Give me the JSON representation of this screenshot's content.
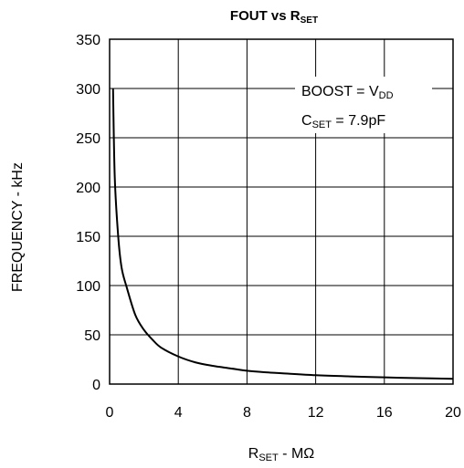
{
  "chart_data": {
    "type": "line",
    "title": {
      "main": "FOUT vs R",
      "sub": "SET"
    },
    "xlabel": {
      "main": "R",
      "sub": "SET",
      "rest": " - MΩ"
    },
    "ylabel": "FREQUENCY - kHz",
    "xlim": [
      0,
      20
    ],
    "ylim": [
      0,
      350
    ],
    "xticks": [
      0,
      4,
      8,
      12,
      16,
      20
    ],
    "yticks": [
      0,
      50,
      100,
      150,
      200,
      250,
      300,
      350
    ],
    "grid": true,
    "annotations": [
      {
        "pre": "BOOST = V",
        "sub": "DD",
        "post": ""
      },
      {
        "pre": "C",
        "sub": "SET",
        "post": " = 7.9pF"
      }
    ],
    "series": [
      {
        "x": [
          0.2,
          0.3,
          0.5,
          0.7,
          1.0,
          1.5,
          2.0,
          2.5,
          3.0,
          4.0,
          5.0,
          6.0,
          7.0,
          8.0,
          9.0,
          10.0,
          12.0,
          14.0,
          16.0,
          18.0,
          20.0
        ],
        "y": [
          300,
          210,
          150,
          118,
          98,
          70,
          55,
          45,
          37,
          28,
          22,
          18.5,
          16,
          13.5,
          12,
          11,
          9,
          7.8,
          6.8,
          6,
          5.3
        ]
      }
    ]
  }
}
